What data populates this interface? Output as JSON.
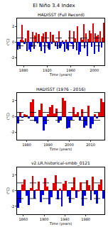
{
  "title": "El Niño 3.4 Index",
  "chart_data": [
    {
      "type": "bar",
      "title": "HADISST (Full Record)",
      "x_label": "Time (years)",
      "y_label": "(°C)",
      "colors": [
        "#e00000",
        "#0000e0"
      ],
      "x": [
        1870,
        1872,
        1874,
        1876,
        1878,
        1880,
        1882,
        1884,
        1886,
        1888,
        1890,
        1892,
        1894,
        1896,
        1898,
        1900,
        1902,
        1904,
        1906,
        1908,
        1910,
        1912,
        1914,
        1916,
        1918,
        1920,
        1922,
        1924,
        1926,
        1928,
        1930,
        1932,
        1934,
        1936,
        1938,
        1940,
        1942,
        1944,
        1946,
        1948,
        1950,
        1952,
        1954,
        1956,
        1958,
        1960,
        1962,
        1964,
        1966,
        1968,
        1970,
        1972,
        1974,
        1976,
        1978,
        1980,
        1982,
        1984,
        1986,
        1988,
        1990,
        1992,
        1994,
        1996,
        1998,
        2000,
        2002,
        2004,
        2006,
        2008,
        2010,
        2012,
        2014,
        2016
      ],
      "values": [
        -1.0,
        -0.4,
        -0.9,
        0.3,
        2.2,
        0.2,
        -0.3,
        0.5,
        -1.2,
        1.5,
        -1.0,
        -1.3,
        -0.6,
        1.3,
        -0.9,
        0.8,
        1.2,
        -0.2,
        1.0,
        -0.6,
        -1.2,
        0.7,
        1.1,
        -1.4,
        1.3,
        -0.2,
        -0.8,
        -1.0,
        1.3,
        -0.3,
        0.9,
        0.2,
        -0.5,
        0.1,
        -0.9,
        1.4,
        -0.8,
        -0.4,
        0.2,
        -0.3,
        -1.3,
        0.3,
        -0.9,
        -1.1,
        1.5,
        -0.1,
        -0.3,
        -0.9,
        1.4,
        0.5,
        -1.1,
        2.0,
        -1.6,
        -1.3,
        0.6,
        0.3,
        2.3,
        -0.8,
        1.1,
        -1.8,
        0.4,
        1.5,
        1.1,
        -0.6,
        2.4,
        -1.5,
        1.1,
        0.7,
        0.9,
        -1.3,
        1.4,
        -0.7,
        0.6,
        2.5
      ],
      "thresholds": [
        0.5,
        -0.5
      ],
      "xlim": [
        1869,
        2017
      ],
      "xticks": [
        1880,
        1920,
        1960,
        2000
      ],
      "ylim": [
        -3,
        3
      ],
      "yticks": [
        -2,
        0,
        2
      ]
    },
    {
      "type": "bar",
      "title": "HADISST (1976 - 2016)",
      "x_label": "Time (years)",
      "y_label": "(°C)",
      "colors": [
        "#e00000",
        "#0000e0"
      ],
      "x": [
        1976,
        1977,
        1978,
        1979,
        1980,
        1981,
        1982,
        1983,
        1984,
        1985,
        1986,
        1987,
        1988,
        1989,
        1990,
        1991,
        1992,
        1993,
        1994,
        1995,
        1996,
        1997,
        1998,
        1999,
        2000,
        2001,
        2002,
        2003,
        2004,
        2005,
        2006,
        2007,
        2008,
        2009,
        2010,
        2011,
        2012,
        2013,
        2014,
        2015,
        2016
      ],
      "values": [
        -0.9,
        0.6,
        -0.1,
        0.3,
        0.2,
        -0.3,
        1.8,
        2.2,
        -0.6,
        -0.9,
        0.8,
        1.6,
        -1.8,
        -1.0,
        0.3,
        1.2,
        1.5,
        0.4,
        1.0,
        -0.8,
        -0.4,
        2.4,
        2.0,
        -1.5,
        -1.4,
        -0.4,
        1.2,
        0.3,
        0.6,
        -0.5,
        0.9,
        -1.4,
        -1.2,
        1.4,
        -1.5,
        -1.0,
        0.3,
        -0.3,
        0.5,
        2.3,
        1.8
      ],
      "thresholds": [
        0.5,
        -0.5
      ],
      "xlim": [
        1975.5,
        2016.5
      ],
      "xticks": [
        1980,
        1990,
        2000,
        2010
      ],
      "ylim": [
        -3,
        3
      ],
      "yticks": [
        -2,
        0,
        2
      ]
    },
    {
      "type": "bar",
      "title": "v2.LR.historical-smbb_0121",
      "x_label": "Time (years)",
      "y_label": "(°C)",
      "colors": [
        "#e00000",
        "#0000e0"
      ],
      "x": [
        1850,
        1854,
        1858,
        1862,
        1866,
        1870,
        1874,
        1878,
        1882,
        1886,
        1890,
        1894,
        1898,
        1902,
        1906,
        1910,
        1914,
        1918,
        1922,
        1926,
        1930,
        1934,
        1938,
        1942,
        1946,
        1950,
        1954,
        1958,
        1962,
        1966,
        1970,
        1974,
        1978,
        1982,
        1986,
        1990,
        1994,
        1998,
        2002,
        2006,
        2010,
        2014
      ],
      "values": [
        -2.2,
        -1.5,
        0.8,
        1.5,
        -0.6,
        -1.8,
        0.4,
        1.9,
        -1.0,
        0.2,
        1.2,
        -1.4,
        -0.5,
        1.6,
        0.6,
        -1.7,
        -0.8,
        1.0,
        2.0,
        -1.1,
        0.3,
        -2.0,
        0.9,
        1.3,
        -0.7,
        -1.5,
        0.5,
        1.7,
        -0.9,
        0.1,
        1.1,
        -1.9,
        -0.6,
        1.4,
        0.7,
        -1.2,
        1.8,
        -0.4,
        -1.6,
        0.8,
        1.5,
        -1.0
      ],
      "thresholds": [
        1.0,
        -1.0
      ],
      "xlim": [
        1848,
        2016
      ],
      "xticks": [
        1860,
        1900,
        1940,
        1980
      ],
      "ylim": [
        -3,
        3
      ],
      "yticks": [
        -2,
        0,
        2
      ]
    }
  ]
}
